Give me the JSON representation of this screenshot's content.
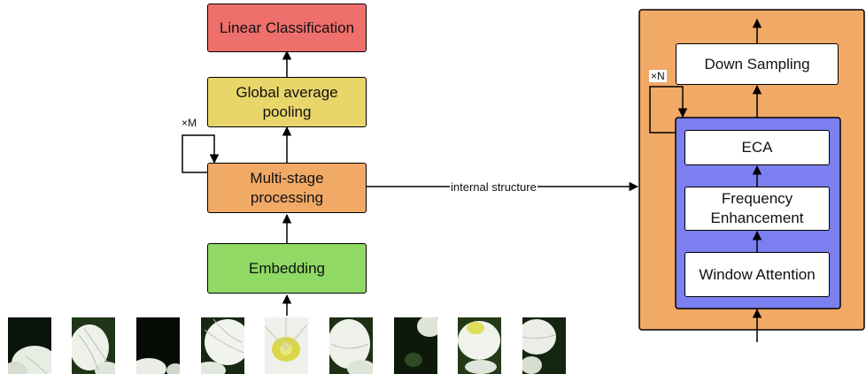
{
  "colors": {
    "classification": "#ef6f6c",
    "pooling": "#e9d66b",
    "processing": "#f1a966",
    "embedding": "#8fd964",
    "outer_panel": "#f1a966",
    "inner_panel": "#7b7ff0",
    "white_box": "#ffffff"
  },
  "left_pipeline": {
    "classification": "Linear Classification",
    "pooling": "Global average\npooling",
    "processing": "Multi-stage\nprocessing",
    "embedding": "Embedding",
    "repeat_label": "×M"
  },
  "connector_label": "internal structure",
  "right_panel": {
    "down_sampling": "Down Sampling",
    "eca": "ECA",
    "frequency": "Frequency\nEnhancement",
    "window_attention": "Window Attention",
    "repeat_label": "×N"
  },
  "patches": [
    {
      "icon": "flower-petal-patch-icon"
    },
    {
      "icon": "flower-petal-patch-icon"
    },
    {
      "icon": "flower-dark-patch-icon"
    },
    {
      "icon": "flower-petal-patch-icon"
    },
    {
      "icon": "flower-center-patch-icon"
    },
    {
      "icon": "flower-petal-patch-icon"
    },
    {
      "icon": "flower-dark-patch-icon"
    },
    {
      "icon": "flower-center-patch-icon"
    },
    {
      "icon": "flower-petal-patch-icon"
    }
  ]
}
